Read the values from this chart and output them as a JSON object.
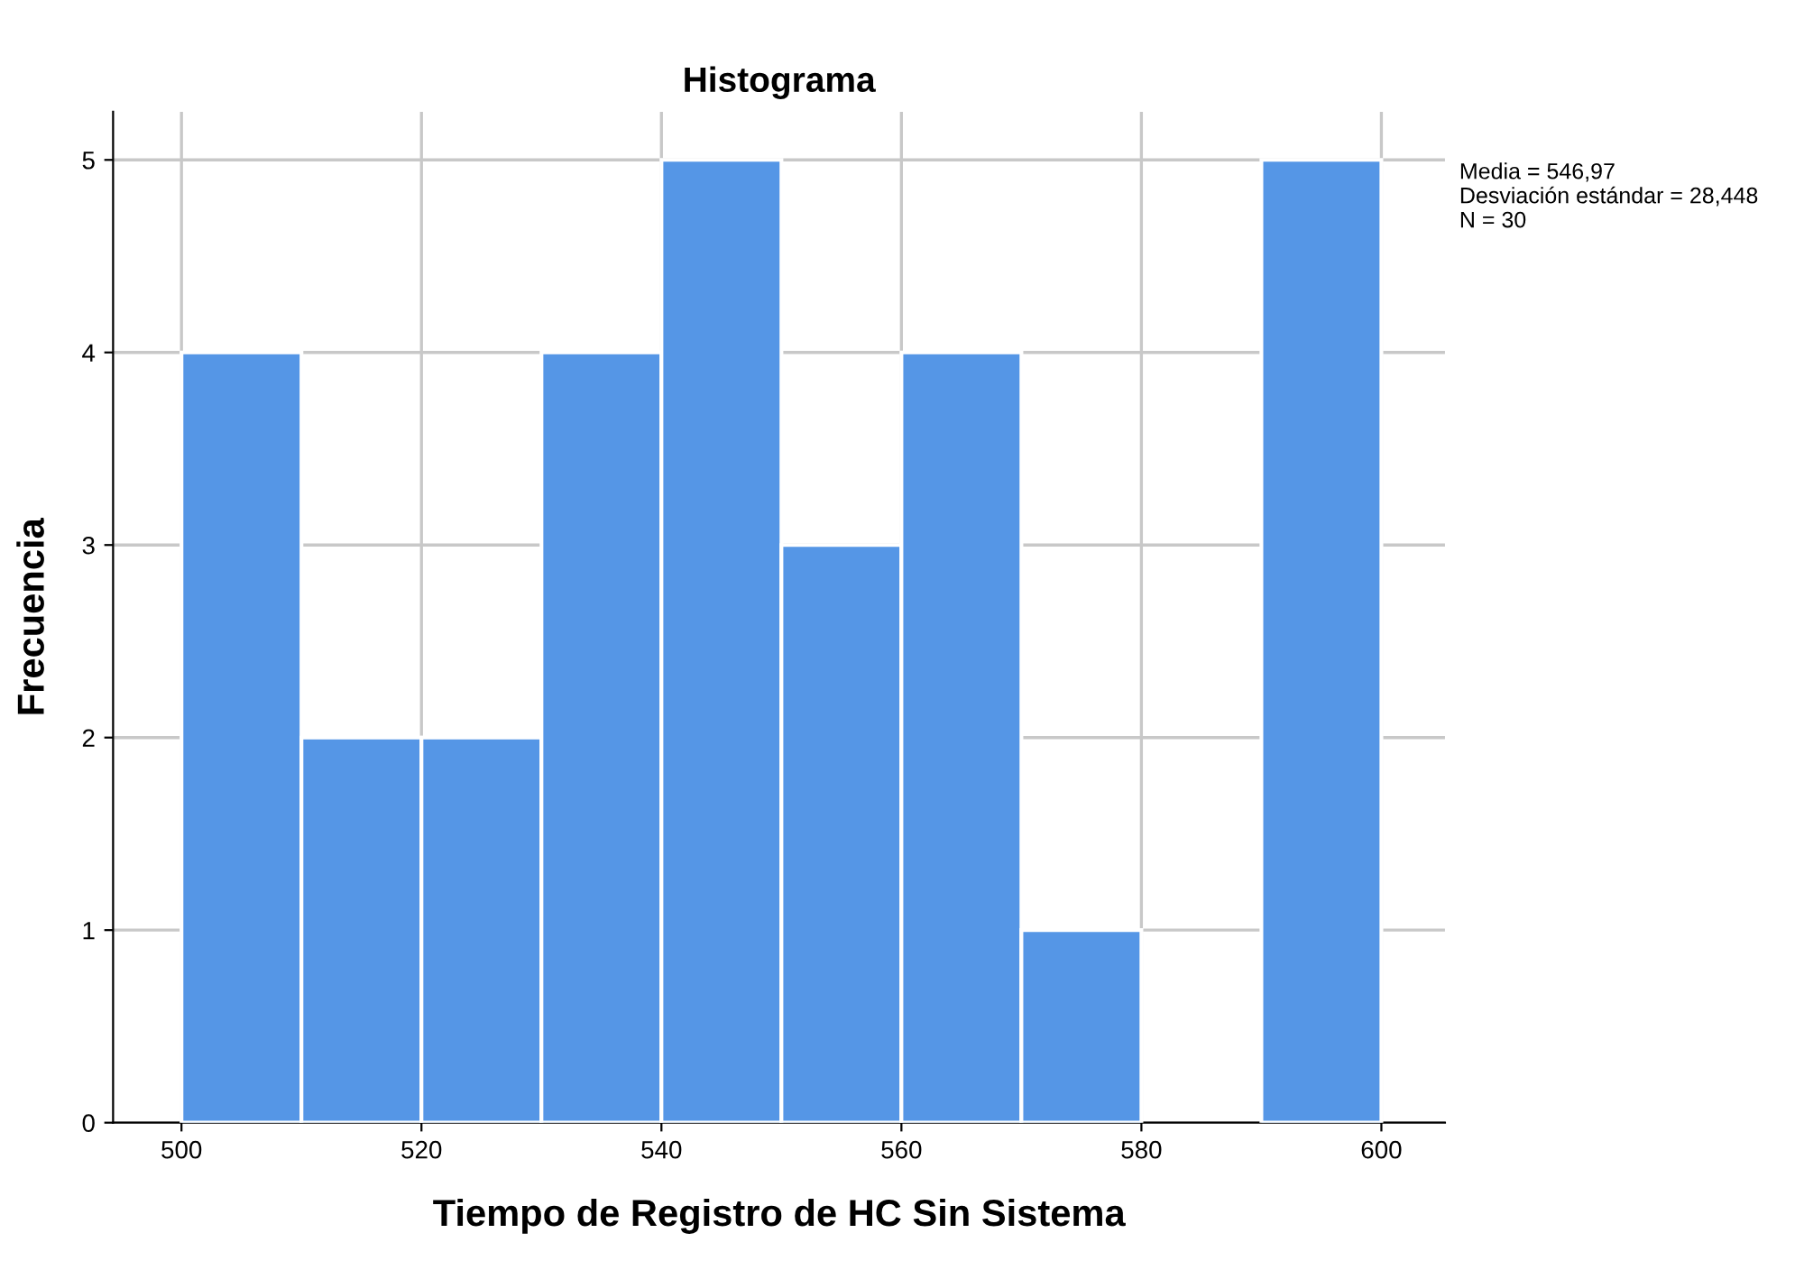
{
  "chart_data": {
    "type": "histogram",
    "title": "Histograma",
    "xlabel": "Tiempo de Registro de HC Sin Sistema",
    "ylabel": "Frecuencia",
    "bins": [
      500,
      510,
      520,
      530,
      540,
      550,
      560,
      570,
      580,
      590,
      600
    ],
    "values": [
      4,
      2,
      2,
      4,
      5,
      3,
      4,
      1,
      0,
      5
    ],
    "color": "#5596e6",
    "xlim": [
      494.3,
      605.3
    ],
    "xticks": [
      500,
      520,
      540,
      560,
      580,
      600
    ],
    "ylim": [
      0,
      5.25
    ],
    "yticks": [
      0,
      1,
      2,
      3,
      4,
      5
    ],
    "grid": true,
    "annotations": [
      "Media = 546,97\nDesviación estándar = 28,448\nN = 30"
    ]
  }
}
